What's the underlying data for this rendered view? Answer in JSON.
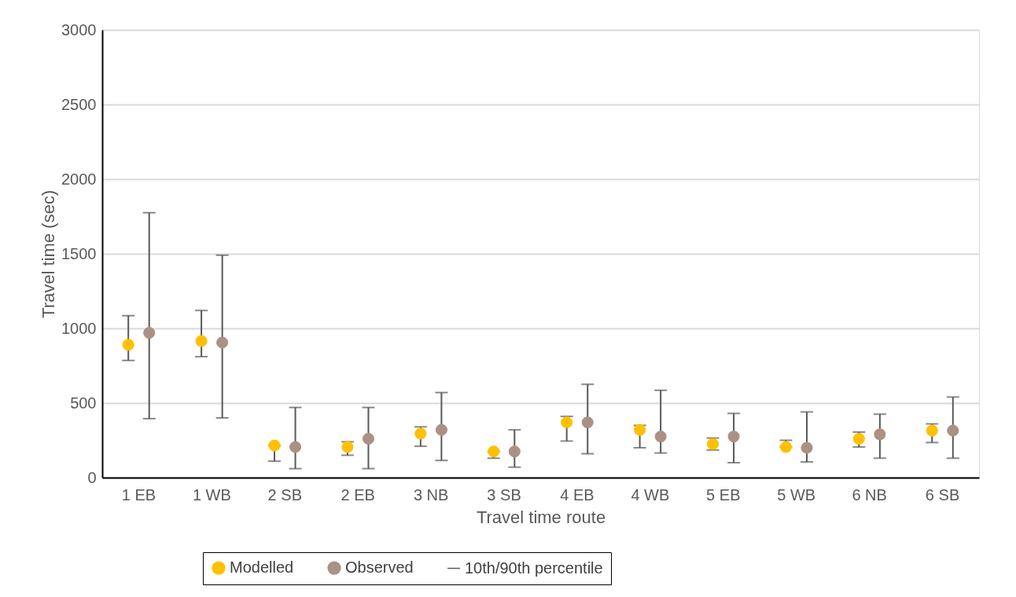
{
  "chart_data": {
    "type": "scatter",
    "xlabel": "Travel time route",
    "ylabel": "Travel time (sec)",
    "categories": [
      "1  EB",
      "1 WB",
      "2  SB",
      "2  EB",
      "3  NB",
      "3  SB",
      "4  EB",
      "4 WB",
      "5  EB",
      "5 WB",
      "6  NB",
      "6  SB"
    ],
    "series": [
      {
        "name": "Modelled",
        "color": "#ffc000",
        "values": [
          890,
          915,
          215,
          205,
          295,
          175,
          370,
          320,
          225,
          205,
          260,
          315
        ],
        "errors": [
          [
            785,
            1085
          ],
          [
            810,
            1120
          ],
          [
            110,
            215
          ],
          [
            150,
            240
          ],
          [
            210,
            340
          ],
          [
            130,
            175
          ],
          [
            245,
            410
          ],
          [
            200,
            350
          ],
          [
            185,
            265
          ],
          [
            205,
            250
          ],
          [
            205,
            305
          ],
          [
            235,
            360
          ]
        ]
      },
      {
        "name": "Observed",
        "color": "#ab9184",
        "values": [
          970,
          905,
          205,
          260,
          320,
          175,
          370,
          275,
          275,
          200,
          290,
          315
        ],
        "errors": [
          [
            395,
            1775
          ],
          [
            400,
            1490
          ],
          [
            60,
            470
          ],
          [
            60,
            470
          ],
          [
            115,
            570
          ],
          [
            70,
            320
          ],
          [
            160,
            625
          ],
          [
            165,
            585
          ],
          [
            100,
            430
          ],
          [
            105,
            440
          ],
          [
            130,
            425
          ],
          [
            130,
            540
          ]
        ]
      }
    ],
    "annotations": [
      "10th/90th percentile"
    ],
    "ylim": [
      0,
      3000
    ],
    "yticks": [
      0,
      500,
      {
        "value": 1000,
        "label": "1000"
      },
      {
        "value": 1500,
        "label": "1500"
      },
      {
        "value": 2000,
        "label": "2000"
      },
      {
        "value": 2500,
        "label": "2500"
      },
      {
        "value": 3000,
        "label": "3000"
      }
    ],
    "grid": "y",
    "legend": "bottom",
    "marker": "circle"
  }
}
